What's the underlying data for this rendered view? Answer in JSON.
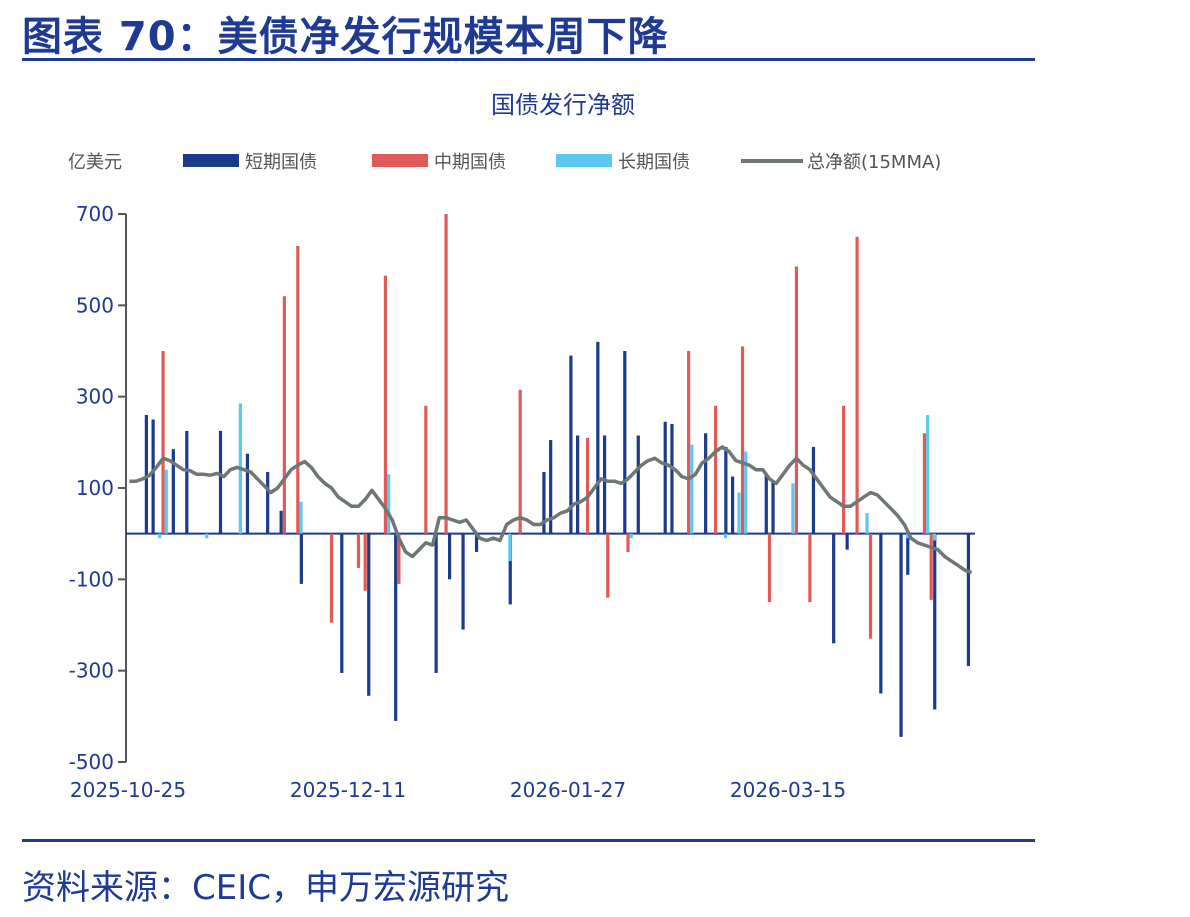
{
  "figure_title": "图表 70：美债净发行规模本周下降",
  "source": "资料来源：CEIC，申万宏源研究",
  "colors": {
    "frame": "#1f3a93",
    "short": "#1c3a8c",
    "medium": "#e05a5a",
    "long": "#5bc8ef",
    "ma_line": "#6e7775",
    "axis": "#555555",
    "text": "#1f3a93"
  },
  "chart_data": {
    "type": "bar",
    "title": "国债发行净额",
    "ylabel": "亿美元",
    "ylim": [
      -500,
      700
    ],
    "yticks": [
      700,
      500,
      300,
      100,
      -100,
      -300,
      -500
    ],
    "xtick_labels": [
      "2025-10-25",
      "2025-12-11",
      "2026-01-27",
      "2026-03-15"
    ],
    "xtick_index": [
      0,
      33,
      66,
      99
    ],
    "legend_placement": "top",
    "grid": false,
    "series": [
      {
        "name": "短期国债",
        "kind": "bar",
        "values": [
          0,
          0,
          0,
          260,
          250,
          0,
          0,
          185,
          0,
          225,
          0,
          0,
          0,
          0,
          225,
          0,
          0,
          0,
          175,
          0,
          0,
          135,
          0,
          50,
          0,
          0,
          -110,
          0,
          0,
          0,
          0,
          0,
          -305,
          0,
          0,
          0,
          -355,
          0,
          0,
          0,
          -410,
          0,
          0,
          0,
          0,
          0,
          -305,
          0,
          -100,
          0,
          -210,
          0,
          -40,
          0,
          0,
          0,
          0,
          -155,
          0,
          0,
          0,
          0,
          135,
          205,
          0,
          0,
          390,
          215,
          0,
          0,
          420,
          215,
          0,
          0,
          400,
          0,
          215,
          0,
          0,
          0,
          245,
          240,
          0,
          0,
          0,
          0,
          220,
          0,
          0,
          190,
          125,
          0,
          0,
          0,
          0,
          130,
          115,
          0,
          0,
          0,
          0,
          0,
          190,
          0,
          0,
          -240,
          0,
          -35,
          0,
          0,
          0,
          0,
          -350,
          0,
          0,
          -445,
          -90,
          0,
          0,
          0,
          -385,
          0,
          0,
          0,
          0,
          -290
        ],
        "color_key": "short"
      },
      {
        "name": "中期国债",
        "kind": "bar",
        "values": [
          0,
          0,
          0,
          0,
          0,
          400,
          0,
          0,
          0,
          0,
          0,
          0,
          0,
          0,
          0,
          0,
          0,
          0,
          0,
          0,
          0,
          0,
          0,
          520,
          0,
          630,
          0,
          0,
          0,
          0,
          -195,
          0,
          0,
          0,
          -75,
          -125,
          0,
          0,
          565,
          0,
          -110,
          0,
          0,
          0,
          280,
          0,
          0,
          700,
          0,
          0,
          0,
          0,
          0,
          0,
          0,
          0,
          0,
          0,
          315,
          0,
          0,
          0,
          0,
          0,
          0,
          0,
          0,
          0,
          210,
          0,
          0,
          -140,
          0,
          0,
          -40,
          0,
          0,
          0,
          0,
          0,
          0,
          0,
          0,
          400,
          0,
          0,
          0,
          280,
          0,
          0,
          0,
          410,
          0,
          0,
          0,
          -150,
          0,
          0,
          0,
          585,
          0,
          -150,
          0,
          0,
          0,
          0,
          280,
          0,
          650,
          0,
          -230,
          0,
          0,
          0,
          0,
          0,
          0,
          0,
          220,
          -145,
          0,
          0,
          0,
          0
        ],
        "color_key": "medium"
      },
      {
        "name": "长期国债",
        "kind": "bar",
        "values": [
          0,
          0,
          0,
          0,
          -10,
          140,
          0,
          0,
          0,
          0,
          0,
          -10,
          0,
          0,
          0,
          0,
          285,
          0,
          0,
          0,
          0,
          0,
          0,
          0,
          0,
          70,
          0,
          0,
          0,
          0,
          0,
          0,
          0,
          0,
          0,
          0,
          0,
          0,
          130,
          0,
          0,
          0,
          0,
          0,
          0,
          0,
          0,
          0,
          0,
          0,
          0,
          0,
          0,
          0,
          0,
          0,
          -60,
          0,
          0,
          0,
          0,
          0,
          0,
          0,
          0,
          0,
          0,
          0,
          0,
          0,
          0,
          0,
          0,
          0,
          -10,
          0,
          0,
          0,
          0,
          0,
          0,
          0,
          0,
          195,
          0,
          0,
          0,
          0,
          -10,
          0,
          90,
          180,
          0,
          0,
          0,
          0,
          0,
          0,
          110,
          0,
          0,
          0,
          0,
          0,
          0,
          0,
          0,
          0,
          0,
          45,
          0,
          0,
          0,
          0,
          0,
          -10,
          0,
          0,
          260,
          -15,
          0,
          0,
          0,
          0
        ],
        "color_key": "long"
      },
      {
        "name": "总净额(15MMA)",
        "kind": "line",
        "values": [
          115,
          115,
          120,
          128,
          145,
          165,
          160,
          150,
          140,
          138,
          130,
          130,
          128,
          132,
          125,
          140,
          145,
          140,
          135,
          120,
          105,
          90,
          100,
          120,
          140,
          150,
          158,
          145,
          125,
          110,
          100,
          80,
          70,
          60,
          60,
          75,
          95,
          75,
          55,
          30,
          -10,
          -40,
          -50,
          -35,
          -20,
          -25,
          35,
          35,
          30,
          25,
          30,
          10,
          -10,
          -15,
          -10,
          -15,
          20,
          30,
          35,
          30,
          20,
          20,
          30,
          35,
          45,
          50,
          65,
          70,
          80,
          100,
          120,
          115,
          115,
          110,
          120,
          135,
          150,
          160,
          165,
          155,
          150,
          140,
          125,
          120,
          130,
          155,
          165,
          180,
          190,
          180,
          160,
          155,
          150,
          140,
          140,
          120,
          110,
          130,
          150,
          165,
          150,
          140,
          120,
          100,
          80,
          70,
          60,
          60,
          70,
          80,
          90,
          85,
          70,
          55,
          40,
          20,
          -10,
          -20,
          -25,
          -30,
          -35,
          -50,
          -60,
          -70,
          -80,
          -85
        ]
      }
    ]
  }
}
